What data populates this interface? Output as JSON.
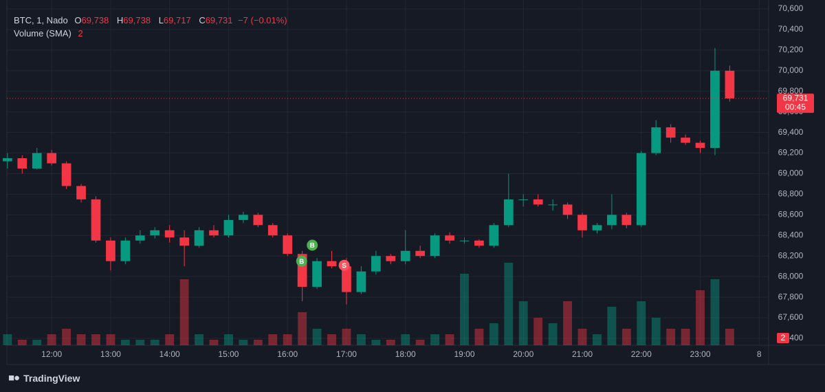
{
  "header": {
    "symbol": "BTC, 1, Nado",
    "ohlc": [
      {
        "key": "O",
        "value": "69,738"
      },
      {
        "key": "H",
        "value": "69,738"
      },
      {
        "key": "L",
        "value": "69,717"
      },
      {
        "key": "C",
        "value": "69,731"
      }
    ],
    "change": "−7 (−0.01%)",
    "volume_indicator": "Volume (SMA)",
    "volume_value": "2"
  },
  "chart_data": {
    "type": "candlestick",
    "x": [
      11.25,
      11.5,
      11.75,
      12,
      12.25,
      12.5,
      12.75,
      13,
      13.25,
      13.5,
      13.75,
      14,
      14.25,
      14.5,
      14.75,
      15,
      15.25,
      15.5,
      15.75,
      16,
      16.25,
      16.5,
      16.75,
      17,
      17.25,
      17.5,
      17.75,
      18,
      18.25,
      18.5,
      18.75,
      19,
      19.25,
      19.5,
      19.75,
      20,
      20.25,
      20.5,
      20.75,
      21,
      21.25,
      21.5,
      21.75,
      22,
      22.25,
      22.5,
      22.75,
      23,
      23.25,
      23.5
    ],
    "open": [
      69120,
      69150,
      69050,
      69200,
      69100,
      68880,
      68750,
      68350,
      68150,
      68350,
      68400,
      68450,
      68380,
      68300,
      68450,
      68400,
      68550,
      68600,
      68500,
      68400,
      68220,
      67900,
      68150,
      68100,
      67850,
      68050,
      68200,
      68150,
      68250,
      68200,
      68400,
      68350,
      68350,
      68300,
      68500,
      68750,
      68750,
      68700,
      68700,
      68600,
      68450,
      68500,
      68600,
      68500,
      69200,
      69450,
      69350,
      69300,
      69250,
      70000
    ],
    "high": [
      69200,
      69180,
      69250,
      69230,
      69120,
      68900,
      68780,
      68380,
      68380,
      68450,
      68480,
      68500,
      68450,
      68480,
      68500,
      68600,
      68630,
      68620,
      68520,
      68420,
      68250,
      68180,
      68250,
      68180,
      68100,
      68250,
      68220,
      68450,
      68300,
      68420,
      68430,
      68380,
      68360,
      68520,
      69000,
      68800,
      68800,
      68750,
      68720,
      68620,
      68520,
      68800,
      68620,
      69220,
      69520,
      69480,
      69380,
      69320,
      70220,
      70050
    ],
    "low": [
      69050,
      69000,
      69040,
      69080,
      68850,
      68720,
      68330,
      68060,
      68120,
      68320,
      68370,
      68330,
      68100,
      68280,
      68380,
      68380,
      68520,
      68480,
      68380,
      68200,
      67760,
      67880,
      68080,
      67730,
      67830,
      68020,
      68120,
      68120,
      68180,
      68180,
      68320,
      68320,
      68280,
      68280,
      68480,
      68680,
      68680,
      68640,
      68560,
      68380,
      68420,
      68460,
      68470,
      68480,
      69180,
      69300,
      69280,
      69200,
      69180,
      69700
    ],
    "close": [
      69150,
      69050,
      69200,
      69100,
      68880,
      68750,
      68350,
      68150,
      68350,
      68400,
      68450,
      68380,
      68300,
      68450,
      68400,
      68550,
      68600,
      68500,
      68400,
      68220,
      67900,
      68150,
      68100,
      67850,
      68050,
      68200,
      68150,
      68250,
      68200,
      68400,
      68350,
      68350,
      68300,
      68500,
      68750,
      68750,
      68700,
      68700,
      68600,
      68450,
      68500,
      68600,
      68500,
      69200,
      69450,
      69350,
      69300,
      69250,
      70000,
      69731
    ],
    "volume": [
      2,
      1,
      1,
      2,
      3,
      2,
      2,
      2,
      1,
      1,
      1,
      2,
      12,
      2,
      1,
      2,
      1,
      1,
      2,
      2,
      6,
      3,
      2,
      3,
      2,
      1,
      1,
      2,
      1,
      2,
      2,
      13,
      3,
      4,
      15,
      8,
      5,
      4,
      8,
      3,
      2,
      7,
      3,
      8,
      5,
      3,
      3,
      10,
      12,
      3
    ],
    "up_color": "#089981",
    "down_color": "#f23645",
    "xlim": [
      11.24,
      24.16
    ],
    "xticks": [
      {
        "value": 12,
        "label": "12:00"
      },
      {
        "value": 13,
        "label": "13:00"
      },
      {
        "value": 14,
        "label": "14:00"
      },
      {
        "value": 15,
        "label": "15:00"
      },
      {
        "value": 16,
        "label": "16:00"
      },
      {
        "value": 17,
        "label": "17:00"
      },
      {
        "value": 18,
        "label": "18:00"
      },
      {
        "value": 19,
        "label": "19:00"
      },
      {
        "value": 20,
        "label": "20:00"
      },
      {
        "value": 21,
        "label": "21:00"
      },
      {
        "value": 22,
        "label": "22:00"
      },
      {
        "value": 23,
        "label": "23:00"
      },
      {
        "value": 24,
        "label": "8"
      }
    ],
    "ylim": [
      67333,
      70687
    ],
    "yticks": [
      {
        "value": 67400,
        "label": "67,400"
      },
      {
        "value": 67600,
        "label": "67,600"
      },
      {
        "value": 67800,
        "label": "67,800"
      },
      {
        "value": 68000,
        "label": "68,000"
      },
      {
        "value": 68200,
        "label": "68,200"
      },
      {
        "value": 68400,
        "label": "68,400"
      },
      {
        "value": 68600,
        "label": "68,600"
      },
      {
        "value": 68800,
        "label": "68,800"
      },
      {
        "value": 69000,
        "label": "69,000"
      },
      {
        "value": 69200,
        "label": "69,200"
      },
      {
        "value": 69400,
        "label": "69,400"
      },
      {
        "value": 69600,
        "label": "69,600"
      },
      {
        "value": 69800,
        "label": "69,800"
      },
      {
        "value": 70000,
        "label": "70,000"
      },
      {
        "value": 70200,
        "label": "70,200"
      },
      {
        "value": 70400,
        "label": "70,400"
      },
      {
        "value": 70600,
        "label": "70,600"
      }
    ],
    "grid": true,
    "last_price": {
      "value": 69731,
      "label": "69,731",
      "countdown": "00:45"
    },
    "volume_tag": "2",
    "markers": [
      {
        "label": "B",
        "x": 16.24,
        "y": 68150,
        "color": "#4caf50"
      },
      {
        "label": "B",
        "x": 16.42,
        "y": 68305,
        "color": "#4caf50"
      },
      {
        "label": "S",
        "x": 16.96,
        "y": 68110,
        "color": "#f7525f"
      }
    ]
  },
  "footer": {
    "brand": "TradingView"
  }
}
